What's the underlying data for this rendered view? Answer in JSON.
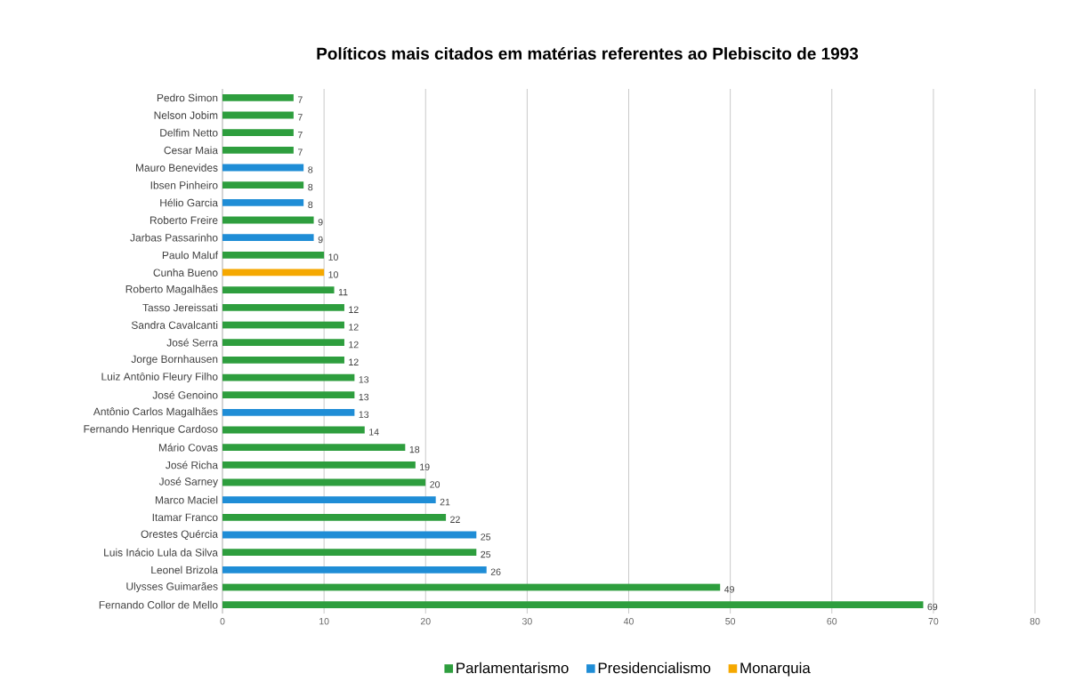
{
  "chart_data": {
    "type": "bar",
    "orientation": "horizontal",
    "title": "Políticos mais citados em matérias referentes ao Plebiscito de 1993",
    "categories": [
      "Pedro Simon",
      "Nelson Jobim",
      "Delfim Netto",
      "Cesar Maia",
      "Mauro Benevides",
      "Ibsen Pinheiro",
      "Hélio Garcia",
      "Roberto Freire",
      "Jarbas Passarinho",
      "Paulo Maluf",
      "Cunha Bueno",
      "Roberto Magalhães",
      "Tasso Jereissati",
      "Sandra Cavalcanti",
      "José Serra",
      "Jorge Bornhausen",
      "Luiz Antônio Fleury Filho",
      "José Genoino",
      "Antônio Carlos Magalhães",
      "Fernando Henrique Cardoso",
      "Mário Covas",
      "José Richa",
      "José Sarney",
      "Marco Maciel",
      "Itamar Franco",
      "Orestes Quércia",
      "Luis Inácio Lula da Silva",
      "Leonel Brizola",
      "Ulysses Guimarães",
      "Fernando Collor de Mello"
    ],
    "series": [
      {
        "name": "Parlamentarismo",
        "color": "#2e9e3e",
        "values": [
          7,
          7,
          7,
          7,
          null,
          8,
          null,
          9,
          null,
          10,
          null,
          11,
          12,
          12,
          12,
          12,
          13,
          13,
          null,
          14,
          18,
          19,
          20,
          null,
          22,
          null,
          25,
          null,
          49,
          69
        ]
      },
      {
        "name": "Presidencialismo",
        "color": "#1f8dd6",
        "values": [
          null,
          null,
          null,
          null,
          8,
          null,
          8,
          null,
          9,
          null,
          null,
          null,
          null,
          null,
          null,
          null,
          null,
          null,
          13,
          null,
          null,
          null,
          null,
          21,
          null,
          25,
          null,
          26,
          null,
          null
        ]
      },
      {
        "name": "Monarquia",
        "color": "#f5a800",
        "values": [
          null,
          null,
          null,
          null,
          null,
          null,
          null,
          null,
          null,
          null,
          10,
          null,
          null,
          null,
          null,
          null,
          null,
          null,
          null,
          null,
          null,
          null,
          null,
          null,
          null,
          null,
          null,
          null,
          null,
          null
        ]
      }
    ],
    "xlim": [
      0,
      80
    ],
    "xticks": [
      0,
      10,
      20,
      30,
      40,
      50,
      60,
      70,
      80
    ],
    "grid": "x",
    "legend": "bottom",
    "data_labels": true
  }
}
